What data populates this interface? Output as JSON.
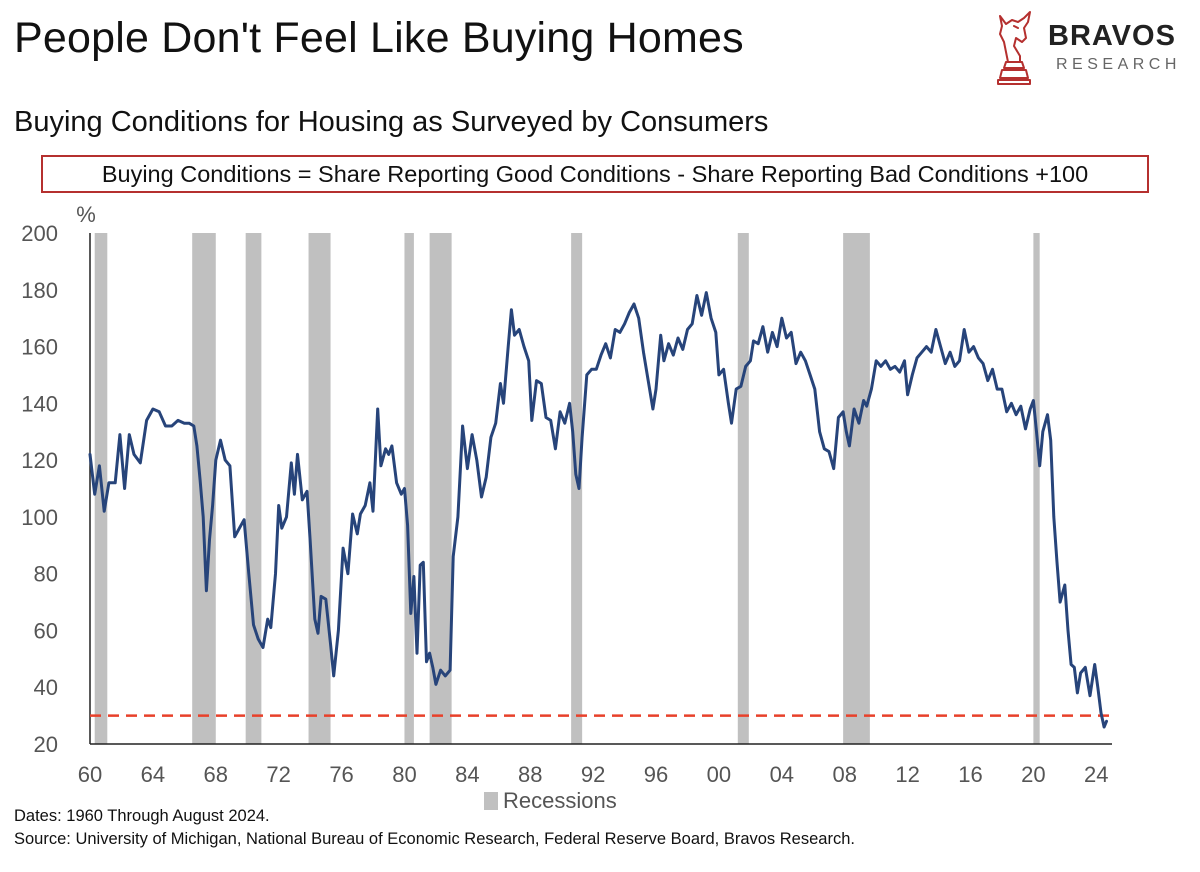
{
  "header": {
    "title": "People Don't Feel Like Buying Homes",
    "subtitle": "Buying Conditions for Housing as Surveyed by Consumers",
    "formula": "Buying Conditions = Share Reporting Good Conditions - Share Reporting Bad Conditions +100"
  },
  "logo": {
    "brand": "BRAVOS",
    "sub": "RESEARCH",
    "icon": "bull-chess-knight-icon",
    "color": "#b5302f"
  },
  "notes": {
    "dates": "Dates: 1960 Through August 2024.",
    "source": "Source: University of Michigan, National Bureau of Economic Research, Federal Reserve Board, Bravos Research."
  },
  "chart_data": {
    "type": "line",
    "title": "People Don't Feel Like Buying Homes",
    "subtitle": "Buying Conditions for Housing as Surveyed by Consumers",
    "ylabel": "%",
    "ylim": [
      20,
      200
    ],
    "yticks": [
      20,
      40,
      60,
      80,
      100,
      120,
      140,
      160,
      180,
      200
    ],
    "xlim": [
      1960,
      2025
    ],
    "xticks": [
      1960,
      1964,
      1968,
      1972,
      1976,
      1980,
      1984,
      1988,
      1992,
      1996,
      2000,
      2004,
      2008,
      2012,
      2016,
      2020,
      2024
    ],
    "xtick_labels": [
      "60",
      "64",
      "68",
      "72",
      "76",
      "80",
      "84",
      "88",
      "92",
      "96",
      "00",
      "04",
      "08",
      "12",
      "16",
      "20",
      "24"
    ],
    "grid": false,
    "legend": {
      "position": "bottom-center",
      "entries": [
        "Recessions"
      ]
    },
    "reference_line": {
      "value": 30,
      "color": "#e8402a",
      "style": "dashed"
    },
    "series_color": "#27447a",
    "recession_color": "#c0c0c0",
    "recessions": [
      [
        1960.3,
        1961.1
      ],
      [
        1966.5,
        1968.0
      ],
      [
        1969.9,
        1970.9
      ],
      [
        1973.9,
        1975.3
      ],
      [
        1980.0,
        1980.6
      ],
      [
        1981.6,
        1983.0
      ],
      [
        1990.6,
        1991.3
      ],
      [
        2001.2,
        2001.9
      ],
      [
        2007.9,
        2009.6
      ],
      [
        2020.0,
        2020.4
      ]
    ],
    "series": [
      {
        "name": "",
        "points": [
          [
            1960.0,
            122
          ],
          [
            1960.3,
            108
          ],
          [
            1960.6,
            118
          ],
          [
            1960.9,
            102
          ],
          [
            1961.2,
            112
          ],
          [
            1961.6,
            112
          ],
          [
            1961.9,
            129
          ],
          [
            1962.2,
            110
          ],
          [
            1962.5,
            129
          ],
          [
            1962.8,
            122
          ],
          [
            1963.2,
            119
          ],
          [
            1963.6,
            134
          ],
          [
            1964.0,
            138
          ],
          [
            1964.4,
            137
          ],
          [
            1964.8,
            132
          ],
          [
            1965.2,
            132
          ],
          [
            1965.6,
            134
          ],
          [
            1966.0,
            133
          ],
          [
            1966.3,
            133
          ],
          [
            1966.6,
            132
          ],
          [
            1966.8,
            125
          ],
          [
            1967.0,
            113
          ],
          [
            1967.2,
            100
          ],
          [
            1967.4,
            74
          ],
          [
            1967.6,
            92
          ],
          [
            1967.8,
            104
          ],
          [
            1968.0,
            120
          ],
          [
            1968.3,
            127
          ],
          [
            1968.6,
            120
          ],
          [
            1968.9,
            118
          ],
          [
            1969.2,
            93
          ],
          [
            1969.5,
            96
          ],
          [
            1969.8,
            99
          ],
          [
            1970.1,
            80
          ],
          [
            1970.4,
            62
          ],
          [
            1970.7,
            57
          ],
          [
            1971.0,
            54
          ],
          [
            1971.3,
            64
          ],
          [
            1971.5,
            61
          ],
          [
            1971.8,
            80
          ],
          [
            1972.0,
            104
          ],
          [
            1972.2,
            96
          ],
          [
            1972.5,
            100
          ],
          [
            1972.8,
            119
          ],
          [
            1973.0,
            108
          ],
          [
            1973.2,
            122
          ],
          [
            1973.5,
            106
          ],
          [
            1973.8,
            109
          ],
          [
            1974.0,
            92
          ],
          [
            1974.3,
            64
          ],
          [
            1974.5,
            59
          ],
          [
            1974.7,
            72
          ],
          [
            1975.0,
            71
          ],
          [
            1975.3,
            55
          ],
          [
            1975.5,
            44
          ],
          [
            1975.8,
            60
          ],
          [
            1976.1,
            89
          ],
          [
            1976.4,
            80
          ],
          [
            1976.7,
            101
          ],
          [
            1977.0,
            94
          ],
          [
            1977.2,
            101
          ],
          [
            1977.5,
            104
          ],
          [
            1977.8,
            112
          ],
          [
            1978.0,
            102
          ],
          [
            1978.3,
            138
          ],
          [
            1978.5,
            118
          ],
          [
            1978.8,
            124
          ],
          [
            1979.0,
            122
          ],
          [
            1979.2,
            125
          ],
          [
            1979.5,
            112
          ],
          [
            1979.8,
            108
          ],
          [
            1980.0,
            110
          ],
          [
            1980.2,
            97
          ],
          [
            1980.4,
            66
          ],
          [
            1980.6,
            79
          ],
          [
            1980.8,
            52
          ],
          [
            1981.0,
            83
          ],
          [
            1981.2,
            84
          ],
          [
            1981.4,
            49
          ],
          [
            1981.6,
            52
          ],
          [
            1981.8,
            47
          ],
          [
            1982.0,
            41
          ],
          [
            1982.3,
            46
          ],
          [
            1982.6,
            44
          ],
          [
            1982.9,
            46
          ],
          [
            1983.1,
            86
          ],
          [
            1983.4,
            100
          ],
          [
            1983.7,
            132
          ],
          [
            1984.0,
            117
          ],
          [
            1984.3,
            129
          ],
          [
            1984.6,
            120
          ],
          [
            1984.9,
            107
          ],
          [
            1985.2,
            114
          ],
          [
            1985.5,
            128
          ],
          [
            1985.8,
            133
          ],
          [
            1986.1,
            147
          ],
          [
            1986.3,
            140
          ],
          [
            1986.6,
            160
          ],
          [
            1986.8,
            173
          ],
          [
            1987.0,
            164
          ],
          [
            1987.3,
            166
          ],
          [
            1987.6,
            160
          ],
          [
            1987.9,
            155
          ],
          [
            1988.1,
            134
          ],
          [
            1988.4,
            148
          ],
          [
            1988.7,
            147
          ],
          [
            1989.0,
            135
          ],
          [
            1989.3,
            134
          ],
          [
            1989.6,
            124
          ],
          [
            1989.9,
            137
          ],
          [
            1990.2,
            133
          ],
          [
            1990.5,
            140
          ],
          [
            1990.7,
            130
          ],
          [
            1990.9,
            115
          ],
          [
            1991.1,
            110
          ],
          [
            1991.3,
            128
          ],
          [
            1991.6,
            150
          ],
          [
            1991.9,
            152
          ],
          [
            1992.2,
            152
          ],
          [
            1992.5,
            157
          ],
          [
            1992.8,
            161
          ],
          [
            1993.1,
            156
          ],
          [
            1993.4,
            166
          ],
          [
            1993.7,
            165
          ],
          [
            1994.0,
            168
          ],
          [
            1994.3,
            172
          ],
          [
            1994.6,
            175
          ],
          [
            1994.9,
            170
          ],
          [
            1995.2,
            158
          ],
          [
            1995.5,
            148
          ],
          [
            1995.8,
            138
          ],
          [
            1996.0,
            145
          ],
          [
            1996.3,
            164
          ],
          [
            1996.5,
            155
          ],
          [
            1996.8,
            161
          ],
          [
            1997.1,
            157
          ],
          [
            1997.4,
            163
          ],
          [
            1997.7,
            159
          ],
          [
            1998.0,
            166
          ],
          [
            1998.3,
            168
          ],
          [
            1998.6,
            178
          ],
          [
            1998.9,
            171
          ],
          [
            1999.2,
            179
          ],
          [
            1999.5,
            170
          ],
          [
            1999.8,
            165
          ],
          [
            2000.0,
            150
          ],
          [
            2000.3,
            152
          ],
          [
            2000.6,
            140
          ],
          [
            2000.8,
            133
          ],
          [
            2001.1,
            145
          ],
          [
            2001.4,
            146
          ],
          [
            2001.7,
            153
          ],
          [
            2002.0,
            155
          ],
          [
            2002.2,
            162
          ],
          [
            2002.5,
            161
          ],
          [
            2002.8,
            167
          ],
          [
            2003.1,
            158
          ],
          [
            2003.4,
            165
          ],
          [
            2003.7,
            160
          ],
          [
            2004.0,
            170
          ],
          [
            2004.3,
            163
          ],
          [
            2004.6,
            165
          ],
          [
            2004.9,
            154
          ],
          [
            2005.2,
            158
          ],
          [
            2005.5,
            155
          ],
          [
            2005.8,
            150
          ],
          [
            2006.1,
            145
          ],
          [
            2006.4,
            130
          ],
          [
            2006.7,
            124
          ],
          [
            2007.0,
            123
          ],
          [
            2007.3,
            117
          ],
          [
            2007.6,
            135
          ],
          [
            2007.9,
            137
          ],
          [
            2008.1,
            130
          ],
          [
            2008.3,
            125
          ],
          [
            2008.6,
            138
          ],
          [
            2008.9,
            133
          ],
          [
            2009.2,
            141
          ],
          [
            2009.4,
            139
          ],
          [
            2009.7,
            145
          ],
          [
            2010.0,
            155
          ],
          [
            2010.3,
            153
          ],
          [
            2010.6,
            155
          ],
          [
            2010.9,
            152
          ],
          [
            2011.2,
            153
          ],
          [
            2011.5,
            151
          ],
          [
            2011.8,
            155
          ],
          [
            2012.0,
            143
          ],
          [
            2012.3,
            150
          ],
          [
            2012.6,
            156
          ],
          [
            2012.9,
            158
          ],
          [
            2013.2,
            160
          ],
          [
            2013.5,
            158
          ],
          [
            2013.8,
            166
          ],
          [
            2014.1,
            160
          ],
          [
            2014.4,
            154
          ],
          [
            2014.7,
            158
          ],
          [
            2015.0,
            153
          ],
          [
            2015.3,
            155
          ],
          [
            2015.6,
            166
          ],
          [
            2015.9,
            158
          ],
          [
            2016.2,
            160
          ],
          [
            2016.5,
            156
          ],
          [
            2016.8,
            154
          ],
          [
            2017.1,
            148
          ],
          [
            2017.4,
            152
          ],
          [
            2017.7,
            145
          ],
          [
            2018.0,
            145
          ],
          [
            2018.3,
            137
          ],
          [
            2018.6,
            140
          ],
          [
            2018.9,
            136
          ],
          [
            2019.2,
            139
          ],
          [
            2019.5,
            131
          ],
          [
            2019.8,
            138
          ],
          [
            2020.0,
            141
          ],
          [
            2020.2,
            130
          ],
          [
            2020.4,
            118
          ],
          [
            2020.6,
            130
          ],
          [
            2020.9,
            136
          ],
          [
            2021.1,
            127
          ],
          [
            2021.3,
            100
          ],
          [
            2021.5,
            84
          ],
          [
            2021.7,
            70
          ],
          [
            2022.0,
            76
          ],
          [
            2022.2,
            60
          ],
          [
            2022.4,
            48
          ],
          [
            2022.6,
            47
          ],
          [
            2022.8,
            38
          ],
          [
            2023.0,
            45
          ],
          [
            2023.3,
            47
          ],
          [
            2023.6,
            37
          ],
          [
            2023.9,
            48
          ],
          [
            2024.1,
            40
          ],
          [
            2024.3,
            31
          ],
          [
            2024.5,
            26
          ],
          [
            2024.65,
            28
          ]
        ]
      }
    ]
  }
}
